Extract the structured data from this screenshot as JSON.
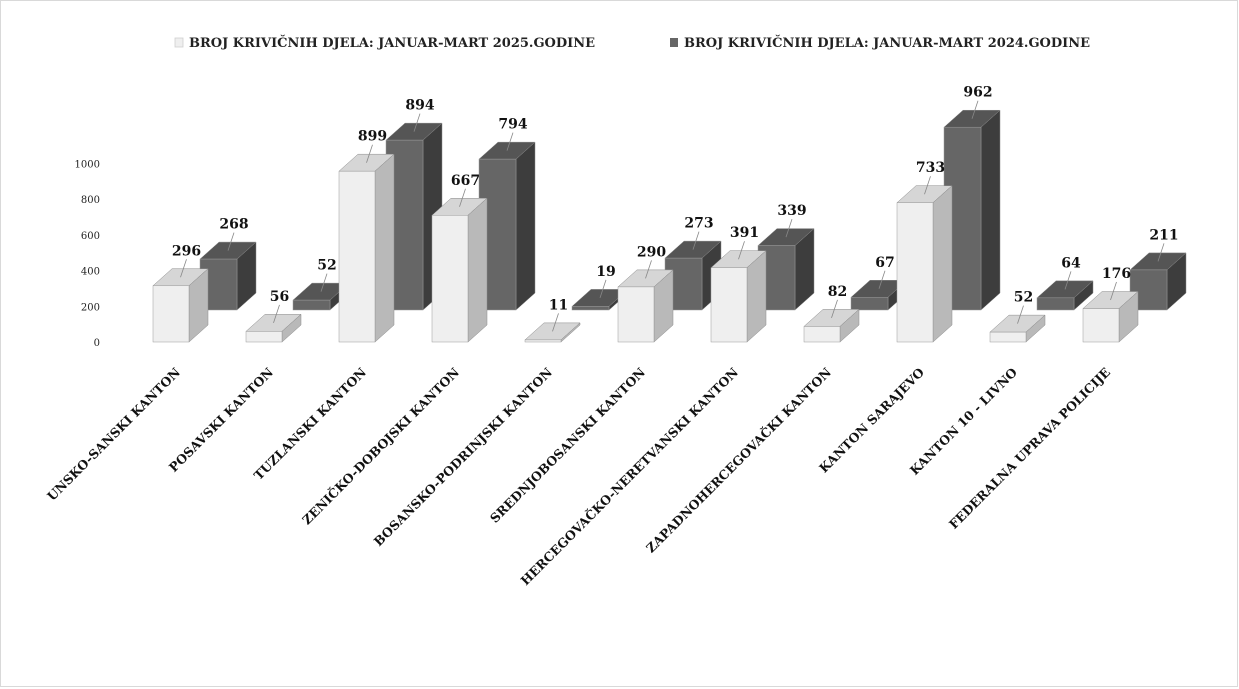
{
  "chart_data": {
    "type": "bar",
    "title": "",
    "xlabel": "",
    "ylabel": "",
    "ylim": [
      0,
      1000
    ],
    "yticks": [
      0,
      200,
      400,
      600,
      800,
      1000
    ],
    "categories": [
      "UNSKO-SANSKI KANTON",
      "POSAVSKI KANTON",
      "TUZLANSKI KANTON",
      "ZENIČKO-DOBOJSKI KANTON",
      "BOSANSKO-PODRINJSKI KANTON",
      "SREDNJOBOSANSKI KANTON",
      "HERCEGOVAČKO-NERETVANSKI KANTON",
      "ZAPADNOHERCEGOVAČKI KANTON",
      "KANTON SARAJEVO",
      "KANTON 10 - LIVNO",
      "FEDERALNA UPRAVA POLICIJE"
    ],
    "series": [
      {
        "name": "BROJ KRIVIČNIH DJELA: JANUAR-MART 2025.GODINE",
        "color": "#efefef",
        "values": [
          296,
          56,
          899,
          667,
          11,
          290,
          391,
          82,
          733,
          52,
          176
        ]
      },
      {
        "name": "BROJ KRIVIČNIH DJELA: JANUAR-MART 2024.GODINE",
        "color": "#666666",
        "values": [
          268,
          52,
          894,
          794,
          19,
          273,
          339,
          67,
          962,
          64,
          211
        ]
      }
    ],
    "legend_position": "top",
    "style": "3d-column",
    "grid": false
  }
}
